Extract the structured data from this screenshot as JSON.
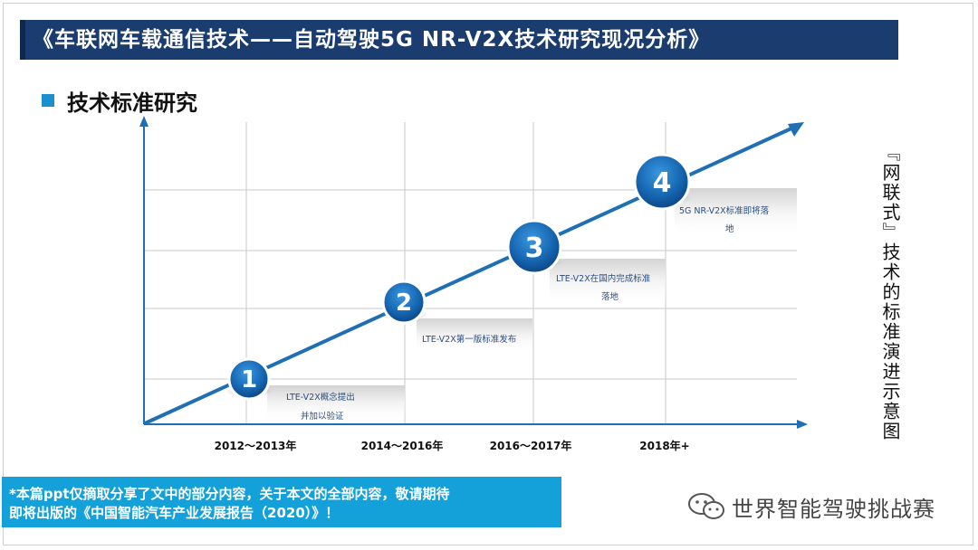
{
  "header": {
    "title": "《车联网车载通信技术——自动驾驶5G NR-V2X技术研究现况分析》"
  },
  "section": {
    "title": "技术标准研究"
  },
  "diagram": {
    "periods": [
      "2012～2013年",
      "2014～2016年",
      "2016～2017年",
      "2018年+"
    ],
    "steps": [
      {
        "number": "1",
        "lines": [
          "LTE-V2X概念提出",
          "并加以验证"
        ]
      },
      {
        "number": "2",
        "lines": [
          "LTE-V2X第一版标准发布"
        ]
      },
      {
        "number": "3",
        "lines": [
          "LTE-V2X在国内完成标准",
          "落地"
        ]
      },
      {
        "number": "4",
        "lines": [
          "5G NR-V2X标准即将落",
          "地"
        ]
      }
    ],
    "colors": {
      "arrow": "#1e6fb4",
      "circle": "#1565b0",
      "grid": "#c9c9c9",
      "axis": "#1e6fb4"
    }
  },
  "side_caption": "『网联式』技术的标准演进示意图",
  "note": {
    "line1": "*本篇ppt仅摘取分享了文中的部分内容，关于本文的全部内容，敬请期待",
    "line2": "即将出版的《中国智能汽车产业发展报告（2020）》！"
  },
  "watermark": {
    "text": "世界智能驾驶挑战赛",
    "icon": "wechat-icon"
  }
}
